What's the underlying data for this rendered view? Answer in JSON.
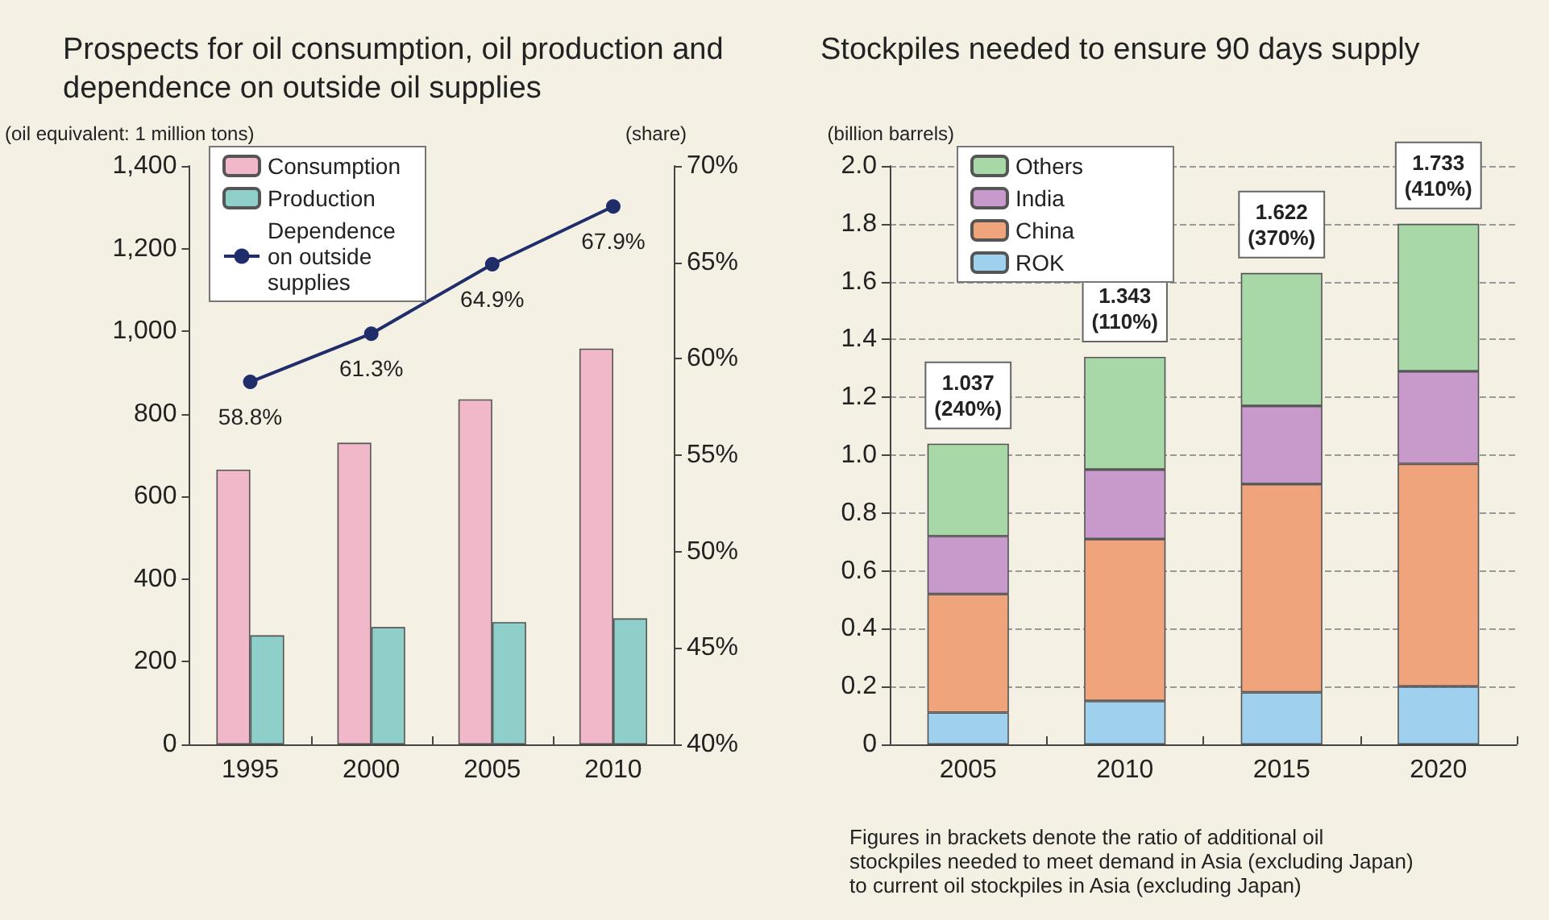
{
  "chart_data": [
    {
      "type": "bar",
      "title": "Prospects for oil consumption, oil production and dependence on outside oil supplies",
      "ylabel": "(oil equivalent: 1 million tons)",
      "y2label": "(share)",
      "categories": [
        "1995",
        "2000",
        "2005",
        "2010"
      ],
      "series": [
        {
          "name": "Consumption",
          "color": "#f0b8c8",
          "values": [
            665,
            730,
            835,
            958
          ]
        },
        {
          "name": "Production",
          "color": "#8fcfca",
          "values": [
            264,
            284,
            296,
            305
          ]
        },
        {
          "name": "Dependence on outside supplies",
          "type": "line",
          "axis": "y2",
          "color": "#1f2d6b",
          "marker": "circle",
          "values": [
            58.8,
            61.3,
            64.9,
            67.9
          ],
          "value_labels": [
            "58.8%",
            "61.3%",
            "64.9%",
            "67.9%"
          ]
        }
      ],
      "ylim": [
        0,
        1400
      ],
      "yticks": [
        0,
        200,
        400,
        600,
        800,
        {
          "value": 1000,
          "label": "1,000"
        },
        {
          "value": 1200,
          "label": "1,200"
        },
        {
          "value": 1400,
          "label": "1,400"
        }
      ],
      "y2lim": [
        40,
        70
      ],
      "y2ticks": [
        {
          "value": 40,
          "label": "40%"
        },
        {
          "value": 45,
          "label": "45%"
        },
        {
          "value": 50,
          "label": "50%"
        },
        {
          "value": 55,
          "label": "55%"
        },
        {
          "value": 60,
          "label": "60%"
        },
        {
          "value": 65,
          "label": "65%"
        },
        {
          "value": 70,
          "label": "70%"
        }
      ],
      "grid": false,
      "legend": "top left"
    },
    {
      "type": "bar",
      "title": "Stockpiles needed to ensure 90 days supply",
      "ylabel": "(billion barrels)",
      "stacked": true,
      "categories": [
        "2005",
        "2010",
        "2015",
        "2020"
      ],
      "series": [
        {
          "name": "ROK",
          "color": "#9fd0ee",
          "values": [
            0.11,
            0.15,
            0.18,
            0.2
          ]
        },
        {
          "name": "China",
          "color": "#f0a47c",
          "values": [
            0.41,
            0.56,
            0.72,
            0.77
          ]
        },
        {
          "name": "India",
          "color": "#c89acb",
          "values": [
            0.2,
            0.24,
            0.27,
            0.32
          ]
        },
        {
          "name": "Others",
          "color": "#a8d8a8",
          "values": [
            0.32,
            0.39,
            0.46,
            0.51
          ]
        }
      ],
      "totals": [
        "1.037\n(240%)",
        "1.343\n(110%)",
        "1.622\n(370%)",
        "1.733\n(410%)"
      ],
      "ylim": [
        0,
        2
      ],
      "yticks": [
        0,
        0.2,
        0.4,
        0.6,
        0.8,
        {
          "value": 1,
          "label": "1.0"
        },
        1.2,
        1.4,
        1.6,
        1.8,
        {
          "value": 2,
          "label": "2.0"
        }
      ],
      "grid": "y",
      "legend": "top left",
      "annotations": [
        "Figures in brackets denote the ratio of additional oil stockpiles needed to meet demand in Asia (excluding Japan) to current oil stockpiles in Asia (excluding Japan)"
      ]
    }
  ]
}
